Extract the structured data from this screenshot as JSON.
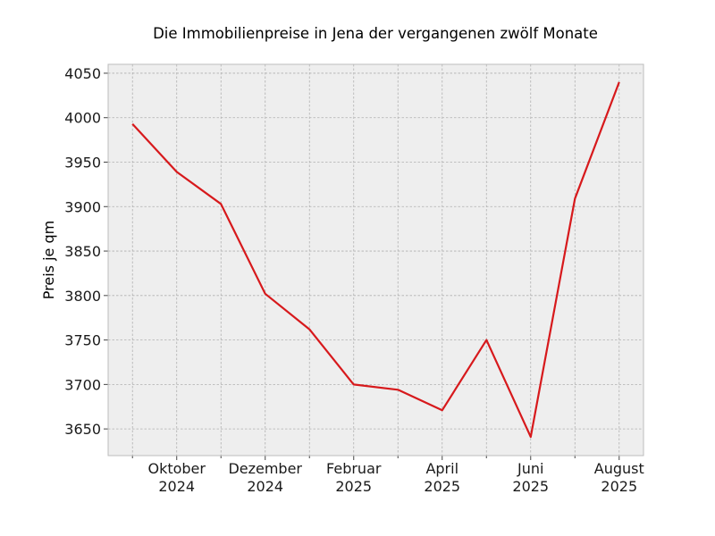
{
  "chart_data": {
    "type": "line",
    "title": "Die Immobilienpreise in Jena der vergangenen zwölf Monate",
    "xlabel": "",
    "ylabel": "Preis je qm",
    "x": [
      "2024-09",
      "2024-10",
      "2024-11",
      "2024-12",
      "2025-01",
      "2025-02",
      "2025-03",
      "2025-04",
      "2025-05",
      "2025-06",
      "2025-07",
      "2025-08"
    ],
    "series": [
      {
        "values": [
          3993,
          3939,
          3903,
          3802,
          3762,
          3700,
          3694,
          3671,
          3750,
          3641,
          3909,
          4040
        ],
        "color": "#d7191c"
      }
    ],
    "ylim": [
      3620,
      4060
    ],
    "yticks": [
      3650,
      3700,
      3750,
      3800,
      3850,
      3900,
      3950,
      4000,
      4050
    ],
    "xtick_labels": [
      {
        "x": "2024-10",
        "line1": "Oktober",
        "line2": "2024"
      },
      {
        "x": "2024-12",
        "line1": "Dezember",
        "line2": "2024"
      },
      {
        "x": "2025-02",
        "line1": "Februar",
        "line2": "2025"
      },
      {
        "x": "2025-04",
        "line1": "April",
        "line2": "2025"
      },
      {
        "x": "2025-06",
        "line1": "Juni",
        "line2": "2025"
      },
      {
        "x": "2025-08",
        "line1": "August",
        "line2": "2025"
      }
    ],
    "grid": true,
    "background": "#eeeeee",
    "grid_color": "#b0b0b0"
  }
}
